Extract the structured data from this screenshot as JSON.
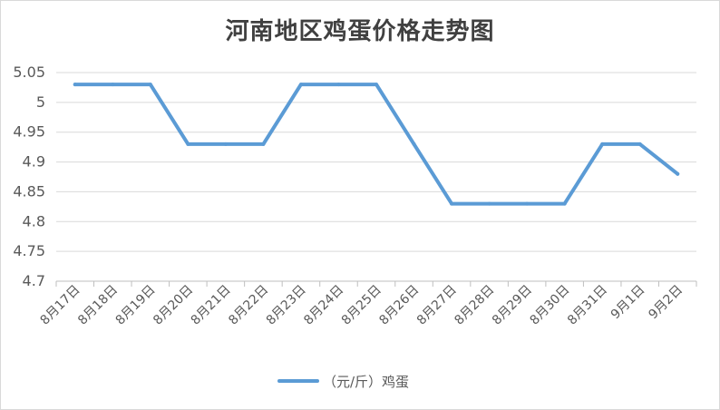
{
  "chart_data": {
    "type": "line",
    "title": "河南地区鸡蛋价格走势图",
    "xlabel": "",
    "ylabel": "",
    "categories": [
      "8月17日",
      "8月18日",
      "8月19日",
      "8月20日",
      "8月21日",
      "8月22日",
      "8月23日",
      "8月24日",
      "8月25日",
      "8月26日",
      "8月27日",
      "8月28日",
      "8月29日",
      "8月30日",
      "8月31日",
      "9月1日",
      "9月2日"
    ],
    "series": [
      {
        "name": "（元/斤）鸡蛋",
        "color": "#5b9bd5",
        "values": [
          5.03,
          5.03,
          5.03,
          4.93,
          4.93,
          4.93,
          5.03,
          5.03,
          5.03,
          4.93,
          4.83,
          4.83,
          4.83,
          4.83,
          4.93,
          4.93,
          4.88
        ]
      }
    ],
    "ylim": [
      4.7,
      5.05
    ],
    "yticks": [
      "4.7",
      "4.75",
      "4.8",
      "4.85",
      "4.9",
      "4.95",
      "5",
      "5.05"
    ],
    "grid": true,
    "legend_position": "bottom"
  }
}
